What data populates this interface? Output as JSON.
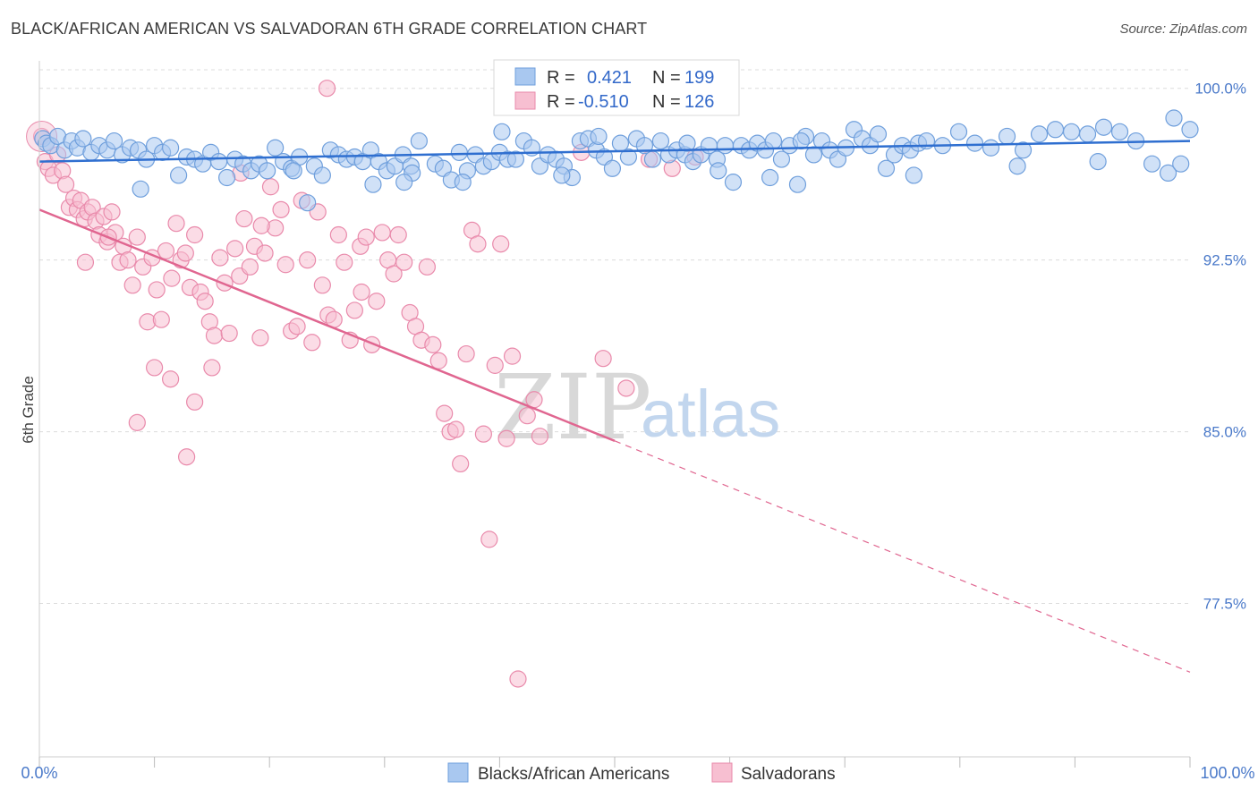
{
  "title": "BLACK/AFRICAN AMERICAN VS SALVADORAN 6TH GRADE CORRELATION CHART",
  "source": "Source: ZipAtlas.com",
  "watermark": {
    "zip": "ZIP",
    "atlas": "atlas"
  },
  "colors": {
    "blue_fill": "#a9c8f0",
    "blue_stroke": "#6f9fdc",
    "blue_line": "#2f6fd0",
    "pink_fill": "#f7bfd1",
    "pink_stroke": "#e98aab",
    "pink_line": "#e06690",
    "grid": "#dcdcdc",
    "axis_text": "#4a79c9"
  },
  "legend": {
    "rows": [
      {
        "r_label": "R =",
        "r_value": "0.421",
        "n_label": "N =",
        "n_value": "199"
      },
      {
        "r_label": "R =",
        "r_value": "-0.510",
        "n_label": "N =",
        "n_value": "126"
      }
    ]
  },
  "bottom_legend": [
    "Blacks/African Americans",
    "Salvadorans"
  ],
  "chart_data": {
    "type": "scatter",
    "title": "BLACK/AFRICAN AMERICAN VS SALVADORAN 6TH GRADE CORRELATION CHART",
    "xlabel": "",
    "ylabel": "6th Grade",
    "xlim": [
      0,
      100
    ],
    "ylim": [
      70.8,
      101.2
    ],
    "x_tick_labels": [
      "0.0%",
      "100.0%"
    ],
    "y_ticks": [
      100.0,
      92.5,
      85.0,
      77.5
    ],
    "y_tick_labels": [
      "100.0%",
      "92.5%",
      "85.0%",
      "77.5%"
    ],
    "grid": true,
    "series": [
      {
        "name": "Blacks/African Americans",
        "R": 0.421,
        "N": 199,
        "trend": {
          "x0": 0,
          "y0": 96.8,
          "x1": 100,
          "y1": 97.7,
          "dashed_from": null
        },
        "points": [
          [
            0.3,
            97.8
          ],
          [
            0.6,
            97.6
          ],
          [
            1.0,
            97.5
          ],
          [
            1.6,
            97.9
          ],
          [
            2.2,
            97.3
          ],
          [
            2.8,
            97.7
          ],
          [
            3.3,
            97.4
          ],
          [
            3.8,
            97.8
          ],
          [
            4.5,
            97.2
          ],
          [
            5.2,
            97.5
          ],
          [
            5.9,
            97.3
          ],
          [
            6.5,
            97.7
          ],
          [
            7.2,
            97.1
          ],
          [
            7.9,
            97.4
          ],
          [
            8.6,
            97.3
          ],
          [
            9.3,
            96.9
          ],
          [
            10.0,
            97.5
          ],
          [
            10.7,
            97.2
          ],
          [
            11.4,
            97.4
          ],
          [
            12.1,
            96.2
          ],
          [
            12.8,
            97.0
          ],
          [
            13.5,
            96.9
          ],
          [
            14.2,
            96.7
          ],
          [
            14.9,
            97.2
          ],
          [
            15.6,
            96.8
          ],
          [
            16.3,
            96.1
          ],
          [
            17.0,
            96.9
          ],
          [
            17.7,
            96.7
          ],
          [
            18.4,
            96.4
          ],
          [
            19.1,
            96.7
          ],
          [
            19.8,
            96.4
          ],
          [
            20.5,
            97.4
          ],
          [
            21.2,
            96.8
          ],
          [
            21.9,
            96.5
          ],
          [
            22.6,
            97.0
          ],
          [
            23.3,
            95.0
          ],
          [
            23.9,
            96.6
          ],
          [
            24.6,
            96.2
          ],
          [
            25.3,
            97.3
          ],
          [
            26.0,
            97.1
          ],
          [
            26.7,
            96.9
          ],
          [
            27.4,
            97.0
          ],
          [
            28.1,
            96.8
          ],
          [
            28.8,
            97.3
          ],
          [
            29.5,
            96.8
          ],
          [
            30.2,
            96.4
          ],
          [
            30.9,
            96.6
          ],
          [
            31.6,
            97.1
          ],
          [
            32.3,
            96.6
          ],
          [
            33.0,
            97.7
          ],
          [
            32.4,
            96.3
          ],
          [
            31.7,
            95.9
          ],
          [
            34.4,
            96.7
          ],
          [
            35.1,
            96.5
          ],
          [
            35.8,
            96.0
          ],
          [
            36.5,
            97.2
          ],
          [
            37.2,
            96.4
          ],
          [
            37.9,
            97.1
          ],
          [
            38.6,
            96.6
          ],
          [
            39.3,
            96.8
          ],
          [
            40.0,
            97.2
          ],
          [
            40.7,
            96.9
          ],
          [
            41.4,
            96.9
          ],
          [
            42.1,
            97.7
          ],
          [
            42.8,
            97.4
          ],
          [
            43.5,
            96.6
          ],
          [
            44.2,
            97.1
          ],
          [
            44.9,
            96.9
          ],
          [
            45.6,
            96.6
          ],
          [
            46.3,
            96.1
          ],
          [
            47.0,
            97.7
          ],
          [
            47.7,
            97.8
          ],
          [
            48.4,
            97.3
          ],
          [
            49.1,
            97.0
          ],
          [
            49.8,
            96.5
          ],
          [
            50.5,
            97.6
          ],
          [
            51.2,
            97.0
          ],
          [
            51.9,
            97.8
          ],
          [
            52.6,
            97.5
          ],
          [
            53.3,
            96.9
          ],
          [
            54.0,
            97.7
          ],
          [
            54.7,
            97.1
          ],
          [
            55.4,
            97.3
          ],
          [
            56.1,
            97.1
          ],
          [
            56.8,
            96.8
          ],
          [
            57.5,
            97.1
          ],
          [
            58.2,
            97.5
          ],
          [
            58.9,
            96.9
          ],
          [
            59.6,
            97.5
          ],
          [
            60.3,
            95.9
          ],
          [
            61.0,
            97.5
          ],
          [
            61.7,
            97.3
          ],
          [
            62.4,
            97.6
          ],
          [
            63.1,
            97.3
          ],
          [
            63.8,
            97.7
          ],
          [
            64.5,
            96.9
          ],
          [
            65.2,
            97.5
          ],
          [
            65.9,
            95.8
          ],
          [
            66.6,
            97.9
          ],
          [
            67.3,
            97.1
          ],
          [
            68.0,
            97.7
          ],
          [
            68.7,
            97.3
          ],
          [
            69.4,
            96.9
          ],
          [
            70.1,
            97.4
          ],
          [
            70.8,
            98.2
          ],
          [
            71.5,
            97.8
          ],
          [
            72.2,
            97.5
          ],
          [
            72.9,
            98.0
          ],
          [
            73.6,
            96.5
          ],
          [
            74.3,
            97.1
          ],
          [
            75.0,
            97.5
          ],
          [
            75.7,
            97.3
          ],
          [
            76.4,
            97.6
          ],
          [
            77.1,
            97.7
          ],
          [
            78.5,
            97.5
          ],
          [
            79.9,
            98.1
          ],
          [
            81.3,
            97.6
          ],
          [
            82.7,
            97.4
          ],
          [
            84.1,
            97.9
          ],
          [
            85.5,
            97.3
          ],
          [
            86.9,
            98.0
          ],
          [
            88.3,
            98.2
          ],
          [
            89.7,
            98.1
          ],
          [
            91.1,
            98.0
          ],
          [
            92.5,
            98.3
          ],
          [
            93.9,
            98.1
          ],
          [
            95.3,
            97.7
          ],
          [
            96.7,
            96.7
          ],
          [
            98.1,
            96.3
          ],
          [
            99.2,
            96.7
          ],
          [
            98.6,
            98.7
          ],
          [
            100.0,
            98.2
          ],
          [
            8.8,
            95.6
          ],
          [
            22.1,
            96.4
          ],
          [
            29.0,
            95.8
          ],
          [
            36.8,
            95.9
          ],
          [
            45.4,
            96.2
          ],
          [
            59.0,
            96.4
          ],
          [
            63.5,
            96.1
          ],
          [
            76.0,
            96.2
          ],
          [
            85.0,
            96.6
          ],
          [
            92.0,
            96.8
          ],
          [
            66.2,
            97.7
          ],
          [
            56.3,
            97.6
          ],
          [
            48.6,
            97.9
          ],
          [
            40.2,
            98.1
          ]
        ]
      },
      {
        "name": "Salvadorans",
        "R": -0.51,
        "N": 126,
        "trend": {
          "x0": 0,
          "y0": 94.7,
          "x1": 100,
          "y1": 74.5,
          "dashed_from": 50
        },
        "points": [
          [
            0.2,
            97.9
          ],
          [
            0.5,
            96.8
          ],
          [
            0.8,
            96.5
          ],
          [
            1.2,
            96.2
          ],
          [
            1.6,
            97.1
          ],
          [
            2.0,
            96.4
          ],
          [
            2.3,
            95.8
          ],
          [
            2.6,
            94.8
          ],
          [
            3.0,
            95.2
          ],
          [
            3.3,
            94.7
          ],
          [
            3.6,
            95.1
          ],
          [
            3.9,
            94.3
          ],
          [
            4.2,
            94.6
          ],
          [
            4.6,
            94.8
          ],
          [
            4.9,
            94.2
          ],
          [
            5.2,
            93.6
          ],
          [
            5.6,
            94.4
          ],
          [
            5.9,
            93.3
          ],
          [
            6.3,
            94.6
          ],
          [
            6.6,
            93.7
          ],
          [
            7.0,
            92.4
          ],
          [
            7.3,
            93.1
          ],
          [
            7.7,
            92.5
          ],
          [
            8.1,
            91.4
          ],
          [
            8.5,
            93.5
          ],
          [
            9.0,
            92.2
          ],
          [
            9.4,
            89.8
          ],
          [
            9.8,
            92.6
          ],
          [
            10.2,
            91.2
          ],
          [
            10.6,
            89.9
          ],
          [
            11.0,
            92.9
          ],
          [
            11.5,
            91.7
          ],
          [
            11.9,
            94.1
          ],
          [
            12.3,
            92.5
          ],
          [
            12.7,
            92.8
          ],
          [
            13.1,
            91.3
          ],
          [
            13.5,
            93.6
          ],
          [
            14.0,
            91.1
          ],
          [
            14.4,
            90.7
          ],
          [
            14.8,
            89.8
          ],
          [
            15.2,
            89.2
          ],
          [
            15.7,
            92.6
          ],
          [
            16.1,
            91.5
          ],
          [
            16.5,
            89.3
          ],
          [
            17.0,
            93.0
          ],
          [
            17.4,
            91.8
          ],
          [
            17.8,
            94.3
          ],
          [
            18.3,
            92.2
          ],
          [
            18.7,
            93.1
          ],
          [
            19.2,
            89.1
          ],
          [
            19.6,
            92.8
          ],
          [
            20.1,
            95.7
          ],
          [
            20.5,
            93.9
          ],
          [
            21.0,
            94.7
          ],
          [
            21.4,
            92.3
          ],
          [
            21.9,
            89.4
          ],
          [
            22.4,
            89.6
          ],
          [
            22.8,
            95.1
          ],
          [
            23.3,
            92.5
          ],
          [
            23.7,
            88.9
          ],
          [
            24.2,
            94.6
          ],
          [
            24.6,
            91.4
          ],
          [
            25.1,
            90.1
          ],
          [
            25.6,
            89.9
          ],
          [
            26.0,
            93.6
          ],
          [
            26.5,
            92.4
          ],
          [
            27.0,
            89.0
          ],
          [
            27.4,
            90.3
          ],
          [
            27.9,
            93.1
          ],
          [
            28.4,
            93.5
          ],
          [
            28.9,
            88.8
          ],
          [
            29.3,
            90.7
          ],
          [
            29.8,
            93.7
          ],
          [
            30.3,
            92.5
          ],
          [
            30.8,
            91.9
          ],
          [
            31.2,
            93.6
          ],
          [
            31.7,
            92.4
          ],
          [
            32.2,
            90.2
          ],
          [
            32.7,
            89.6
          ],
          [
            33.2,
            89.0
          ],
          [
            33.7,
            92.2
          ],
          [
            34.2,
            88.8
          ],
          [
            34.7,
            88.1
          ],
          [
            35.2,
            85.8
          ],
          [
            35.7,
            85.0
          ],
          [
            36.2,
            85.1
          ],
          [
            36.6,
            83.6
          ],
          [
            37.1,
            88.4
          ],
          [
            37.6,
            93.8
          ],
          [
            38.1,
            93.2
          ],
          [
            38.6,
            84.9
          ],
          [
            39.1,
            80.3
          ],
          [
            39.6,
            87.9
          ],
          [
            40.1,
            93.2
          ],
          [
            40.6,
            84.7
          ],
          [
            41.1,
            88.3
          ],
          [
            41.6,
            74.2
          ],
          [
            42.4,
            85.7
          ],
          [
            43.0,
            86.4
          ],
          [
            43.5,
            84.8
          ],
          [
            47.1,
            97.2
          ],
          [
            49.0,
            88.2
          ],
          [
            51.0,
            86.9
          ],
          [
            53.0,
            96.9
          ],
          [
            55.0,
            96.5
          ],
          [
            57.0,
            97.0
          ],
          [
            25.0,
            100.0
          ],
          [
            28.0,
            91.1
          ],
          [
            15.0,
            87.8
          ],
          [
            13.5,
            86.3
          ],
          [
            11.4,
            87.3
          ],
          [
            12.8,
            83.9
          ],
          [
            8.5,
            85.4
          ],
          [
            10.0,
            87.8
          ],
          [
            17.5,
            96.3
          ],
          [
            19.3,
            94.0
          ],
          [
            4.0,
            92.4
          ],
          [
            6.0,
            93.5
          ]
        ]
      }
    ]
  }
}
